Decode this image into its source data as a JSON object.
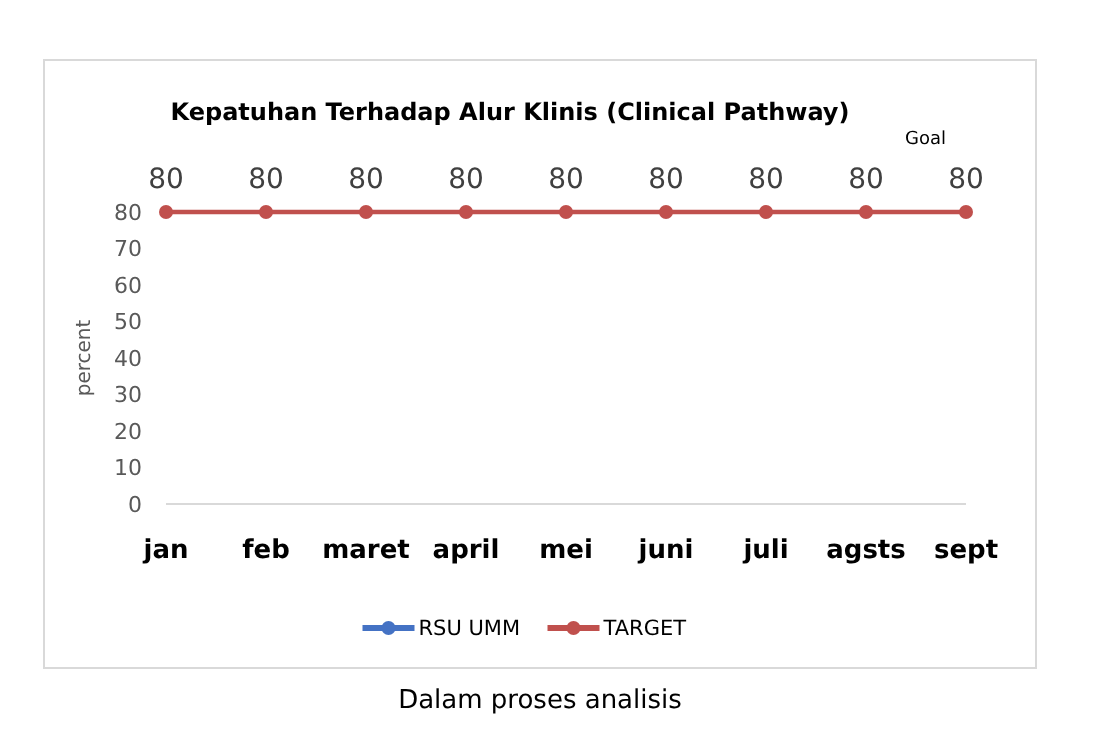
{
  "chart_data": {
    "type": "line",
    "title": "Kepatuhan Terhadap Alur Klinis (Clinical Pathway)",
    "ylabel": "percent",
    "categories": [
      "jan",
      "feb",
      "maret",
      "april",
      "mei",
      "juni",
      "juli",
      "agsts",
      "sept"
    ],
    "series": [
      {
        "name": "RSU UMM",
        "color": "#4472c4",
        "values": [
          null,
          null,
          null,
          null,
          null,
          null,
          null,
          null,
          null
        ]
      },
      {
        "name": "TARGET",
        "color": "#c0504d",
        "values": [
          80,
          80,
          80,
          80,
          80,
          80,
          80,
          80,
          80
        ]
      }
    ],
    "ylim": [
      0,
      80
    ],
    "yticks": [
      0,
      10,
      20,
      30,
      40,
      50,
      60,
      70,
      80
    ],
    "grid": false,
    "legend": "bottom",
    "marker": "circle",
    "data_labels": true,
    "annotations": [
      "Goal",
      "Dalam proses analisis"
    ]
  }
}
